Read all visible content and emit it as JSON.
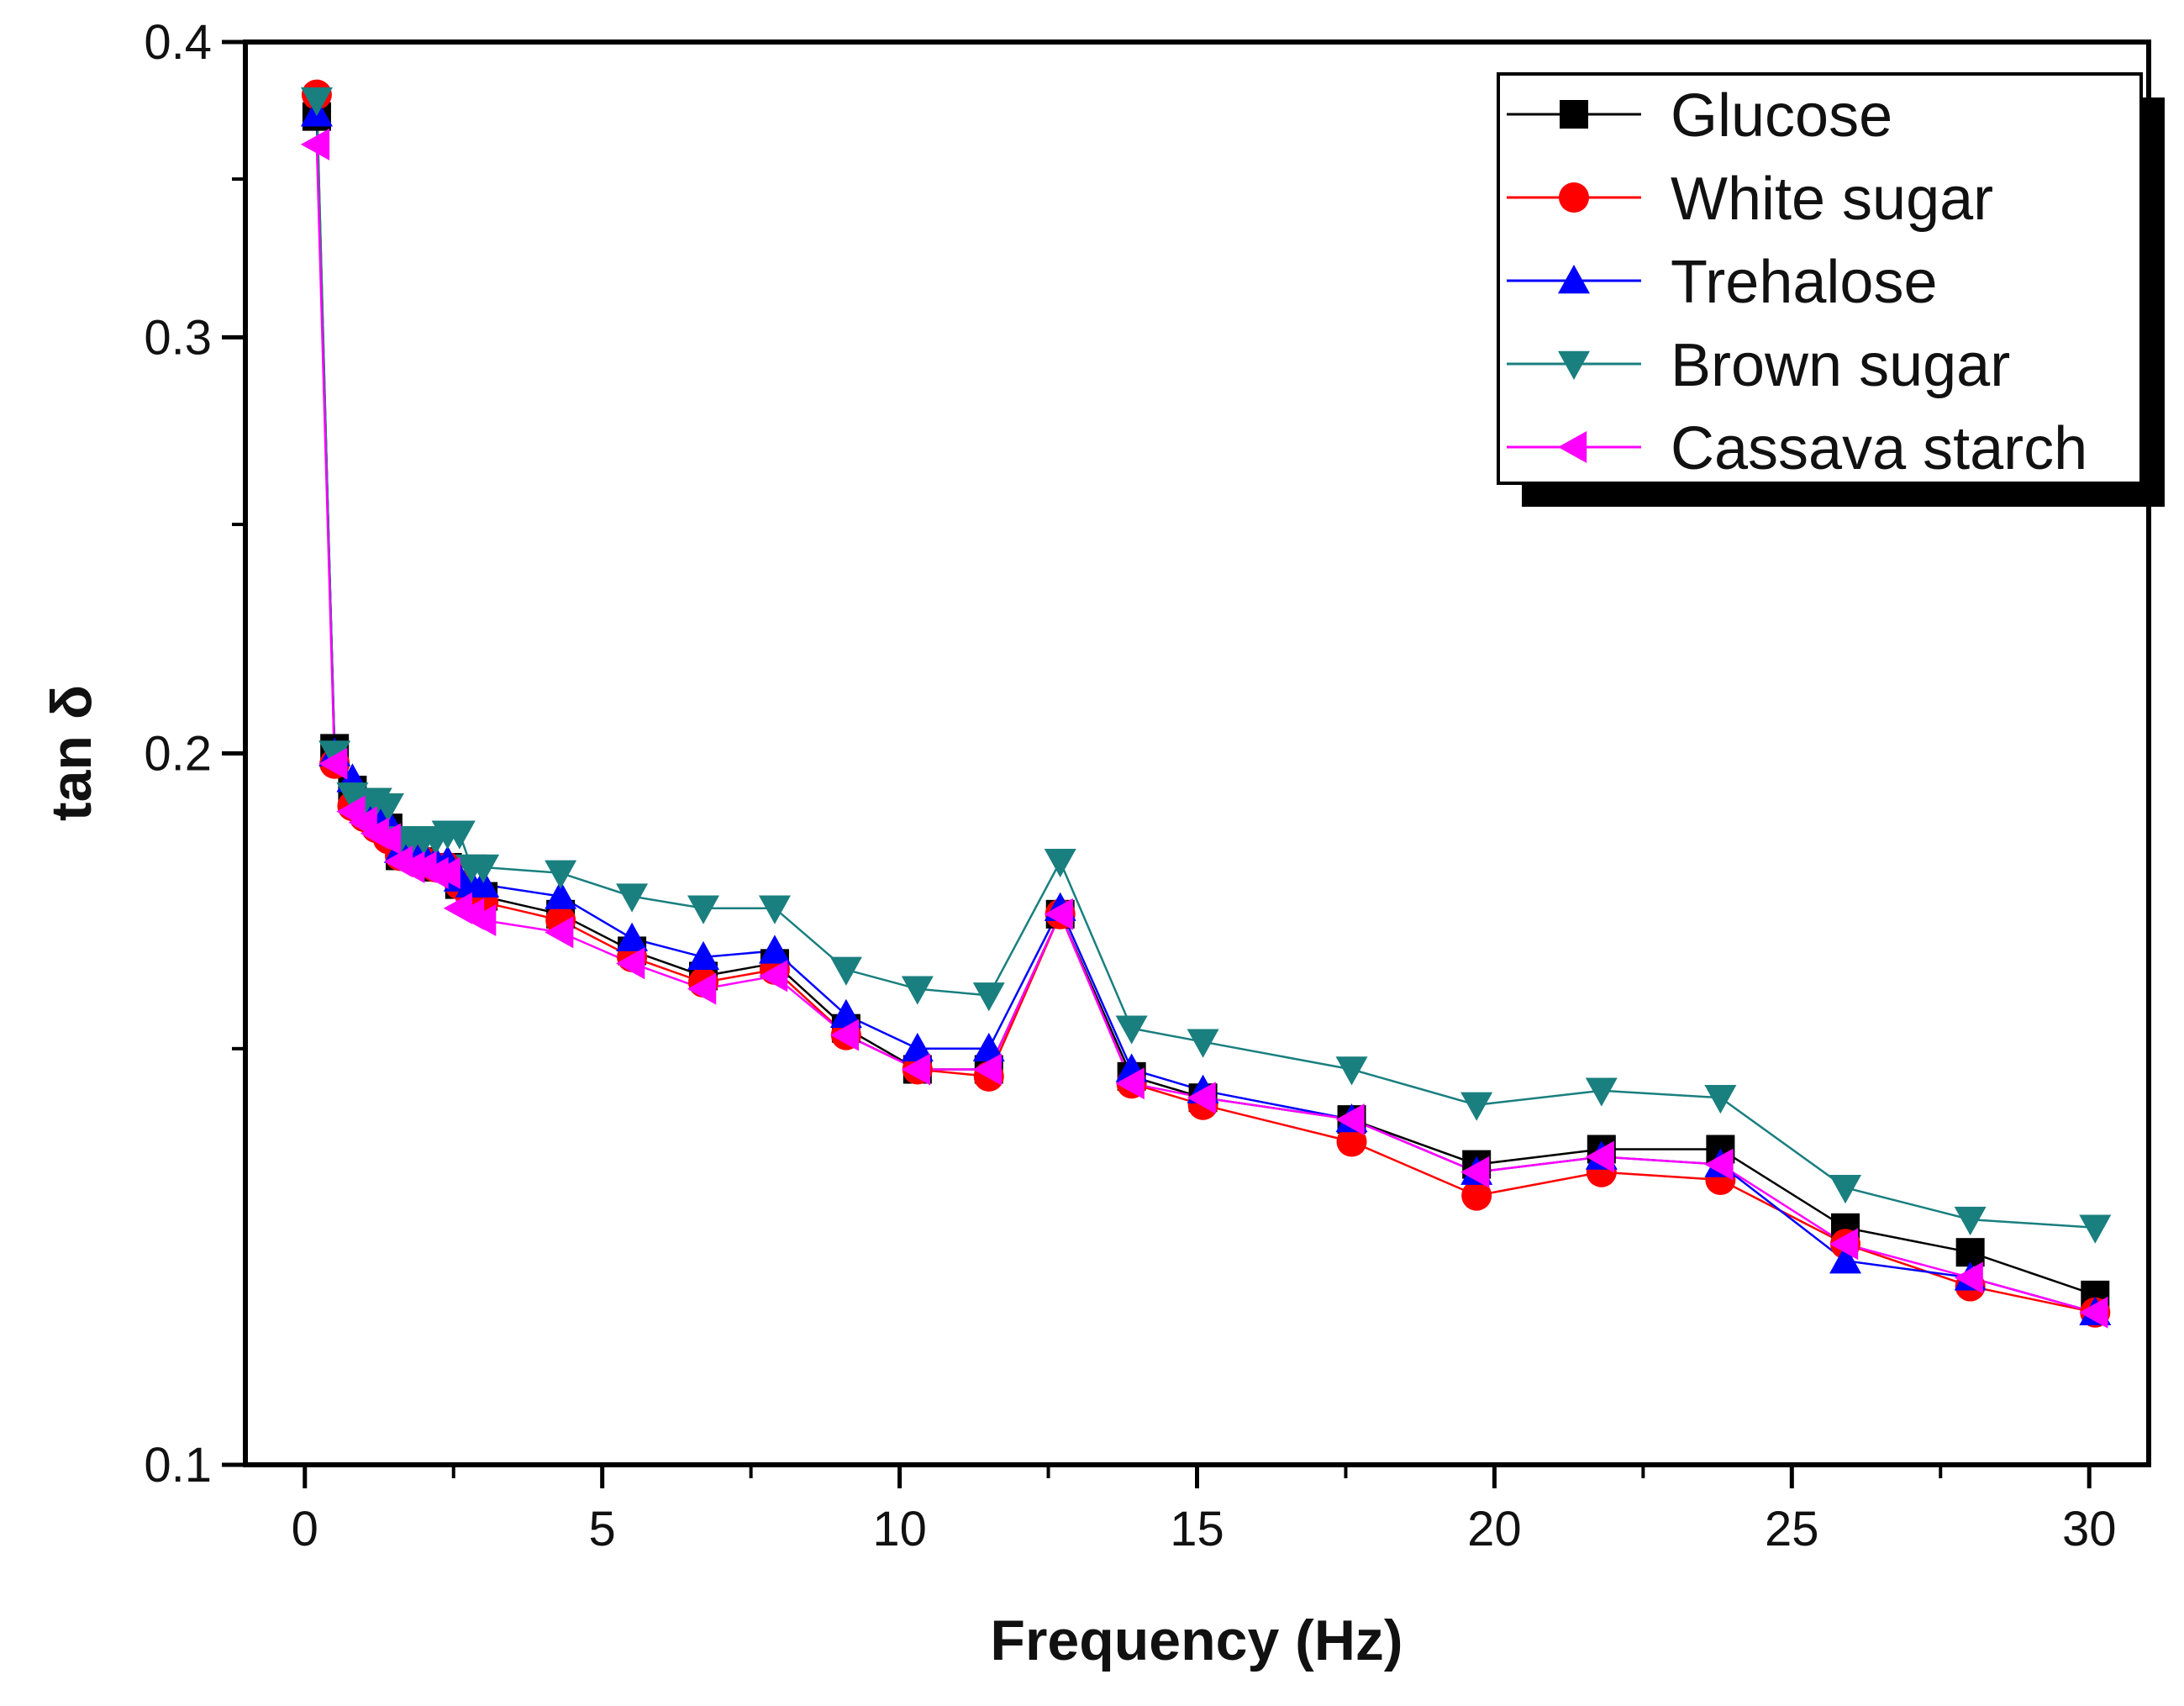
{
  "chart_data": {
    "type": "line",
    "title": "",
    "xlabel": "Frequency (Hz)",
    "ylabel": "tan δ",
    "xlim": [
      -1,
      31
    ],
    "ylim": [
      0.1,
      0.4
    ],
    "yscale": "log",
    "x_ticks": [
      0,
      5,
      10,
      15,
      20,
      25,
      30
    ],
    "x_tick_labels": [
      "0",
      "5",
      "10",
      "15",
      "20",
      "25",
      "30"
    ],
    "y_ticks": [
      0.1,
      0.2,
      0.3,
      0.4
    ],
    "y_tick_labels": [
      "0.1",
      "0.2",
      "0.3",
      "0.4"
    ],
    "legend_position": "top-right",
    "x": [
      0.2,
      0.5,
      0.8,
      1.0,
      1.2,
      1.4,
      1.6,
      1.8,
      2.0,
      2.2,
      2.4,
      2.6,
      2.8,
      3.0,
      4.3,
      5.5,
      6.7,
      7.9,
      9.1,
      10.3,
      11.5,
      12.7,
      13.9,
      15.1,
      17.6,
      19.7,
      21.8,
      23.8,
      25.9,
      28.0,
      30.1
    ],
    "series": [
      {
        "name": "Glucose",
        "color": "#000000",
        "marker": "square",
        "values": [
          0.372,
          0.201,
          0.193,
          0.19,
          0.188,
          0.186,
          0.181,
          0.181,
          0.18,
          0.179,
          0.179,
          0.176,
          0.174,
          0.174,
          0.171,
          0.165,
          0.161,
          0.163,
          0.153,
          0.147,
          0.147,
          0.171,
          0.146,
          0.143,
          0.14,
          0.134,
          0.136,
          0.136,
          0.126,
          0.123,
          0.118
        ]
      },
      {
        "name": "White sugar",
        "color": "#ff0000",
        "marker": "circle",
        "values": [
          0.38,
          0.198,
          0.19,
          0.188,
          0.186,
          0.184,
          0.181,
          0.181,
          0.18,
          0.179,
          0.179,
          0.176,
          0.174,
          0.173,
          0.17,
          0.164,
          0.16,
          0.162,
          0.152,
          0.147,
          0.146,
          0.171,
          0.145,
          0.142,
          0.137,
          0.13,
          0.133,
          0.132,
          0.124,
          0.119,
          0.116
        ]
      },
      {
        "name": "Trehalose",
        "color": "#0000ff",
        "marker": "triangle-up",
        "values": [
          0.373,
          0.2,
          0.195,
          0.191,
          0.189,
          0.187,
          0.182,
          0.182,
          0.181,
          0.18,
          0.18,
          0.177,
          0.176,
          0.176,
          0.174,
          0.167,
          0.164,
          0.165,
          0.155,
          0.15,
          0.15,
          0.172,
          0.147,
          0.144,
          0.14,
          0.133,
          0.135,
          0.134,
          0.122,
          0.12,
          0.116
        ]
      },
      {
        "name": "Brown sugar",
        "color": "#1a7f7f",
        "marker": "triangle-down",
        "values": [
          0.378,
          0.2,
          0.192,
          0.191,
          0.191,
          0.19,
          0.184,
          0.184,
          0.184,
          0.184,
          0.185,
          0.185,
          0.179,
          0.179,
          0.178,
          0.174,
          0.172,
          0.172,
          0.162,
          0.159,
          0.158,
          0.18,
          0.153,
          0.151,
          0.147,
          0.142,
          0.144,
          0.143,
          0.131,
          0.127,
          0.126
        ]
      },
      {
        "name": "Cassava starch",
        "color": "#ff00ff",
        "marker": "triangle-left",
        "values": [
          0.362,
          0.198,
          0.189,
          0.187,
          0.185,
          0.184,
          0.18,
          0.179,
          0.179,
          0.178,
          0.178,
          0.172,
          0.171,
          0.17,
          0.168,
          0.163,
          0.159,
          0.161,
          0.152,
          0.147,
          0.147,
          0.171,
          0.145,
          0.143,
          0.14,
          0.133,
          0.135,
          0.134,
          0.124,
          0.12,
          0.116
        ]
      }
    ]
  }
}
